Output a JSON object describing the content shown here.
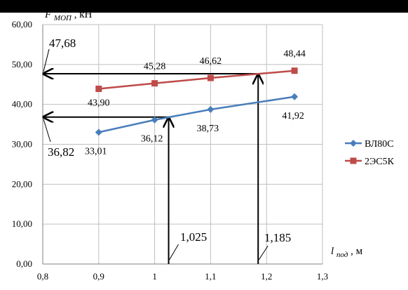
{
  "chart_data": {
    "type": "line",
    "title": "",
    "xlabel": "l",
    "xlabel_sub": "под",
    "xlabel_unit": ", м",
    "ylabel": "F",
    "ylabel_sub": "МОП",
    "ylabel_unit": ", кН",
    "xlim": [
      0.8,
      1.3
    ],
    "ylim": [
      0,
      60
    ],
    "x_ticks": [
      0.8,
      0.9,
      1.0,
      1.1,
      1.2,
      1.3
    ],
    "x_tick_labels": [
      "0,8",
      "0,9",
      "1",
      "1,1",
      "1,2",
      "1,3"
    ],
    "y_ticks": [
      0,
      10,
      20,
      30,
      40,
      50,
      60
    ],
    "y_tick_labels": [
      "0,00",
      "10,00",
      "20,00",
      "30,00",
      "40,00",
      "50,00",
      "60,00"
    ],
    "grid": "both",
    "legend_position": "right",
    "series": [
      {
        "name": "ВЛ80С",
        "color": "#4a7ebb",
        "marker": "diamond",
        "x": [
          0.9,
          1.0,
          1.1,
          1.25
        ],
        "values": [
          33.01,
          36.12,
          38.73,
          41.92
        ],
        "labels": [
          "33,01",
          "36,12",
          "38,73",
          "41,92"
        ]
      },
      {
        "name": "2ЭС5К",
        "color": "#be4b48",
        "marker": "square",
        "x": [
          0.9,
          1.0,
          1.1,
          1.25
        ],
        "values": [
          43.9,
          45.28,
          46.62,
          48.44
        ],
        "labels": [
          "43,90",
          "45,28",
          "46,62",
          "48,44"
        ]
      }
    ],
    "annotations": [
      {
        "text": "47,68",
        "x": 1.185,
        "y": 47.68
      },
      {
        "text": "36,82",
        "x": 1.025,
        "y": 36.82
      },
      {
        "text": "1,025",
        "x": 1.025,
        "y": 36.82
      },
      {
        "text": "1,185",
        "x": 1.185,
        "y": 47.68
      }
    ]
  }
}
